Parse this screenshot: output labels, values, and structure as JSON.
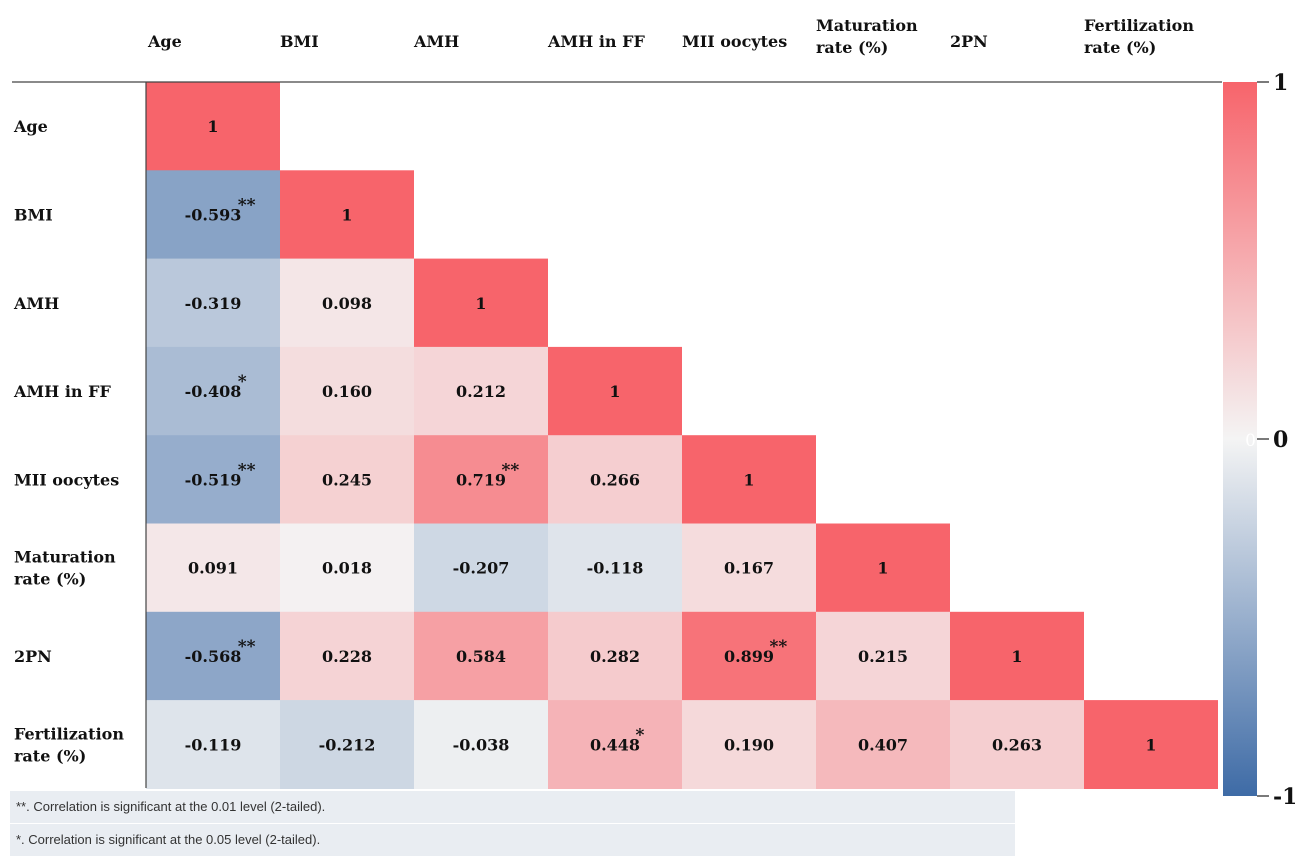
{
  "chart_data": {
    "type": "heatmap",
    "columns": [
      "Age",
      "BMI",
      "AMH",
      "AMH in FF",
      "MII oocytes",
      "Maturation rate (%)",
      "2PN",
      "Fertilization rate (%)"
    ],
    "rows": [
      "Age",
      "BMI",
      "AMH",
      "AMH in FF",
      "MII oocytes",
      "Maturation rate (%)",
      "2PN",
      "Fertilization rate (%)"
    ],
    "values": [
      [
        "1"
      ],
      [
        "-0.593",
        "1"
      ],
      [
        "-0.319",
        "0.098",
        "1"
      ],
      [
        "-0.408",
        "0.160",
        "0.212",
        "1"
      ],
      [
        "-0.519",
        "0.245",
        "0.719",
        "0.266",
        "1"
      ],
      [
        "0.091",
        "0.018",
        "-0.207",
        "-0.118",
        "0.167",
        "1"
      ],
      [
        "-0.568",
        "0.228",
        "0.584",
        "0.282",
        "0.899",
        "0.215",
        "1"
      ],
      [
        "-0.119",
        "-0.212",
        "-0.038",
        "0.448",
        "0.190",
        "0.407",
        "0.263",
        "1"
      ]
    ],
    "significance": [
      [
        ""
      ],
      [
        "**",
        ""
      ],
      [
        "",
        "",
        ""
      ],
      [
        "*",
        "",
        "",
        ""
      ],
      [
        "**",
        "",
        "**",
        "",
        ""
      ],
      [
        "",
        "",
        "",
        "",
        "",
        ""
      ],
      [
        "**",
        "",
        "",
        "",
        "**",
        "",
        ""
      ],
      [
        "",
        "",
        "",
        "*",
        "",
        "",
        "",
        ""
      ]
    ],
    "colorbar": {
      "range": [
        -1,
        1
      ],
      "ticks": [
        "1",
        "0",
        "-1"
      ],
      "inner_label": "0",
      "colors": {
        "low": "#3e6ba6",
        "mid": "#f4f4f4",
        "high": "#f7646b"
      }
    }
  },
  "footnotes": {
    "note_01": "**. Correlation is significant at the 0.01 level (2-tailed).",
    "note_05": "*. Correlation is significant at the 0.05 level (2-tailed)."
  }
}
